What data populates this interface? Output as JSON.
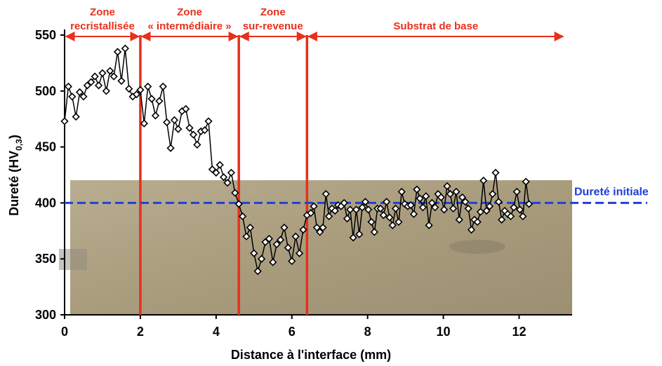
{
  "chart_data": {
    "type": "line",
    "x_label": "Distance à l'interface (mm)",
    "y_label": {
      "text": "Dureté (HV",
      "sub": "0,3",
      "end": ")"
    },
    "xlim": [
      0,
      13.4
    ],
    "ylim": [
      300,
      550
    ],
    "xticks": [
      0,
      2,
      4,
      6,
      8,
      10,
      12
    ],
    "yticks": [
      300,
      350,
      400,
      450,
      500,
      550
    ],
    "zone_color": "#e8301c",
    "zones": [
      {
        "label": [
          "Zone",
          "recristallisée"
        ],
        "start": 0,
        "end": 2.0
      },
      {
        "label": [
          "Zone",
          "« intermédiaire »"
        ],
        "start": 2.0,
        "end": 4.6
      },
      {
        "label": [
          "Zone",
          "sur-revenue"
        ],
        "start": 4.6,
        "end": 6.4
      },
      {
        "label": [
          "Substrat de base"
        ],
        "start": 6.4,
        "end": 13.2
      }
    ],
    "reference": {
      "value": 400,
      "label": "Dureté initiale",
      "color": "#1f3fdc"
    },
    "series": [
      {
        "color": "#000000",
        "x": [
          0,
          0.1,
          0.2,
          0.3,
          0.4,
          0.5,
          0.6,
          0.7,
          0.8,
          0.9,
          1.0,
          1.1,
          1.2,
          1.3,
          1.4,
          1.5,
          1.6,
          1.7,
          1.8,
          1.9,
          2.0,
          2.1,
          2.2,
          2.3,
          2.4,
          2.5,
          2.6,
          2.7,
          2.8,
          2.9,
          3.0,
          3.1,
          3.2,
          3.3,
          3.4,
          3.5,
          3.6,
          3.7,
          3.8,
          3.9,
          4.0,
          4.1,
          4.2,
          4.3,
          4.4,
          4.5,
          4.6,
          4.7,
          4.8,
          4.9,
          5.0,
          5.1,
          5.2,
          5.3,
          5.4,
          5.5,
          5.6,
          5.7,
          5.8,
          5.9,
          6.0,
          6.1,
          6.2,
          6.3,
          6.4,
          6.5,
          6.58,
          6.66,
          6.74,
          6.82,
          6.9,
          6.98,
          7.06,
          7.14,
          7.22,
          7.3,
          7.38,
          7.46,
          7.54,
          7.62,
          7.7,
          7.78,
          7.86,
          7.94,
          8.02,
          8.1,
          8.18,
          8.26,
          8.34,
          8.42,
          8.5,
          8.58,
          8.66,
          8.74,
          8.82,
          8.9,
          8.98,
          9.06,
          9.14,
          9.22,
          9.3,
          9.38,
          9.46,
          9.54,
          9.62,
          9.7,
          9.78,
          9.86,
          9.94,
          10.02,
          10.1,
          10.18,
          10.26,
          10.34,
          10.42,
          10.5,
          10.58,
          10.66,
          10.74,
          10.82,
          10.9,
          10.98,
          11.06,
          11.14,
          11.22,
          11.3,
          11.38,
          11.46,
          11.54,
          11.62,
          11.7,
          11.78,
          11.86,
          11.94,
          12.02,
          12.1,
          12.18,
          12.26
        ],
        "values": [
          473,
          504,
          495,
          477,
          499,
          495,
          505,
          508,
          513,
          505,
          516,
          500,
          518,
          513,
          535,
          509,
          538,
          502,
          495,
          497,
          501,
          471,
          504,
          493,
          478,
          491,
          504,
          472,
          449,
          474,
          466,
          482,
          484,
          467,
          461,
          452,
          464,
          465,
          473,
          430,
          427,
          434,
          423,
          418,
          427,
          409,
          399,
          388,
          370,
          378,
          355,
          339,
          350,
          365,
          368,
          347,
          363,
          367,
          378,
          360,
          348,
          370,
          355,
          376,
          389,
          391,
          397,
          378,
          374,
          378,
          408,
          388,
          395,
          393,
          398,
          397,
          400,
          386,
          394,
          369,
          394,
          372,
          396,
          401,
          394,
          383,
          374,
          395,
          395,
          389,
          401,
          387,
          380,
          395,
          383,
          410,
          399,
          397,
          398,
          390,
          412,
          404,
          396,
          406,
          380,
          400,
          396,
          408,
          405,
          394,
          415,
          408,
          395,
          410,
          385,
          405,
          401,
          395,
          376,
          385,
          383,
          392,
          420,
          393,
          397,
          408,
          427,
          401,
          385,
          393,
          390,
          388,
          396,
          410,
          394,
          388,
          419,
          399
        ]
      }
    ]
  }
}
